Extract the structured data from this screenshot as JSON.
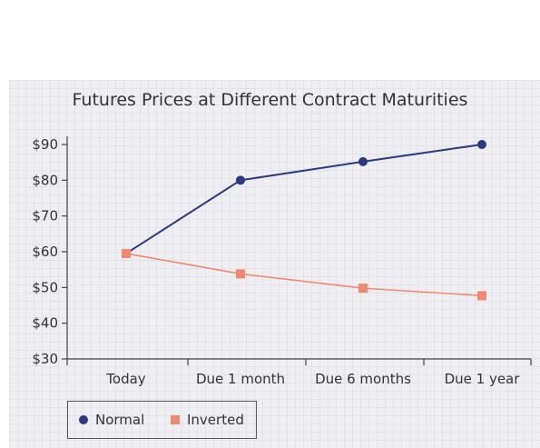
{
  "chart_data": {
    "type": "line",
    "title": "Futures Prices at Different Contract Maturities",
    "xlabel": "",
    "ylabel": "",
    "categories": [
      "Today",
      "Due 1 month",
      "Due 6 months",
      "Due 1 year"
    ],
    "y_ticks": [
      "$30",
      "$40",
      "$50",
      "$60",
      "$70",
      "$80",
      "$90"
    ],
    "ylim": [
      30,
      92
    ],
    "grid": true,
    "legend_placement": "bottom-left",
    "series": [
      {
        "name": "Normal",
        "values": [
          59.5,
          80,
          85.2,
          90
        ],
        "color": "#2a3a7e",
        "marker": "circle"
      },
      {
        "name": "Inverted",
        "values": [
          59.5,
          53.8,
          49.8,
          47.7
        ],
        "color": "#ef8a70",
        "marker": "square"
      }
    ]
  }
}
